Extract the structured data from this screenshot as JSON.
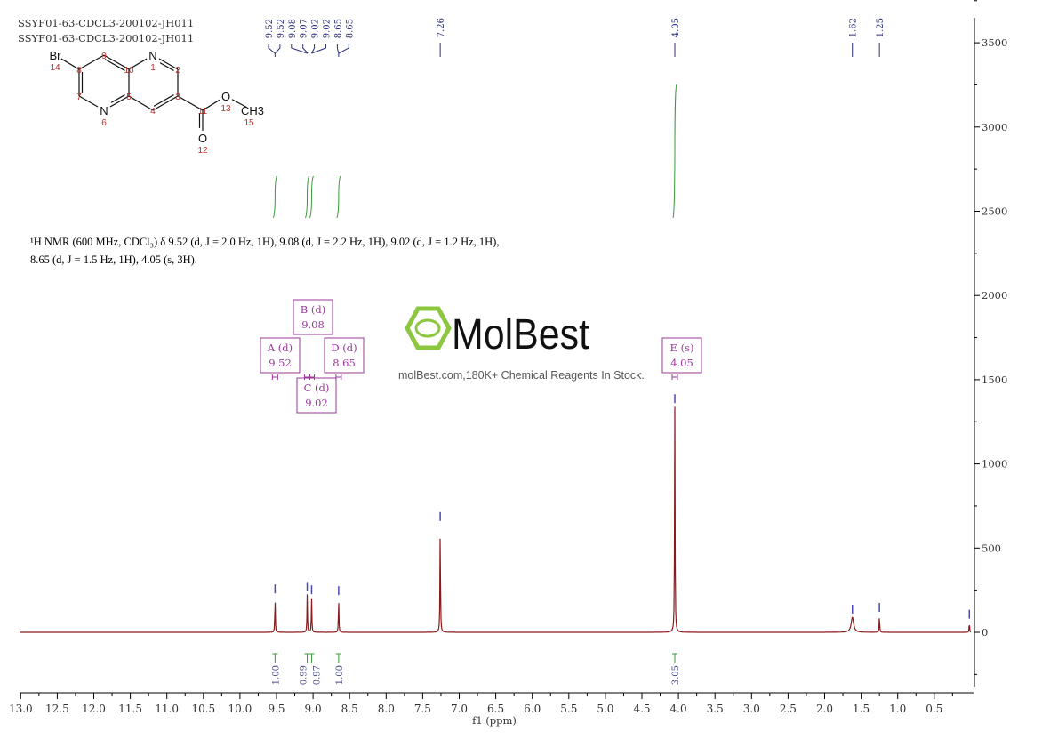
{
  "header": {
    "title_lines": [
      "SSYF01-63-CDCL3-200102-JH011",
      "SSYF01-63-CDCL3-200102-JH011"
    ]
  },
  "description": {
    "line1": "¹H NMR (600 MHz, CDCl₃) δ 9.52 (d, J = 2.0 Hz, 1H), 9.08 (d, J = 2.2 Hz, 1H), 9.02 (d, J = 1.2 Hz, 1H),",
    "line2": "8.65 (d, J = 1.5 Hz, 1H), 4.05 (s, 3H)."
  },
  "watermark": {
    "brand": "MolBest",
    "tagline": "molBest.com,180K+ Chemical Reagents In Stock."
  },
  "structure": {
    "atoms": [
      {
        "label": "Br",
        "num": "14"
      },
      {
        "label": "",
        "num": "8"
      },
      {
        "label": "",
        "num": "9"
      },
      {
        "label": "",
        "num": "10"
      },
      {
        "label": "N",
        "num": "1"
      },
      {
        "label": "",
        "num": "2"
      },
      {
        "label": "",
        "num": "3"
      },
      {
        "label": "",
        "num": "4"
      },
      {
        "label": "",
        "num": "5"
      },
      {
        "label": "N",
        "num": "6"
      },
      {
        "label": "",
        "num": "7"
      },
      {
        "label": "",
        "num": "11"
      },
      {
        "label": "O",
        "num": "12"
      },
      {
        "label": "O",
        "num": "13"
      },
      {
        "label": "CH3",
        "num": "15"
      }
    ]
  },
  "colors": {
    "spectrum": "#8b1a1a",
    "peak_labels": "#2b2f7a",
    "integrals": "#3a9a3a",
    "multiplets": "#9b3a9b",
    "axis": "#000000",
    "watermark_green": "#8dc63f"
  },
  "chart_data": {
    "type": "line",
    "title": "",
    "xlabel": "f1 (ppm)",
    "ylabel": "",
    "xlim": [
      13.0,
      0.0
    ],
    "ylim": [
      -350,
      3650
    ],
    "x_reversed": true,
    "x_ticks": [
      "13.0",
      "12.5",
      "12.0",
      "11.5",
      "11.0",
      "10.5",
      "10.0",
      "9.5",
      "9.0",
      "8.5",
      "8.0",
      "7.5",
      "7.0",
      "6.5",
      "6.0",
      "5.5",
      "5.0",
      "4.5",
      "4.0",
      "3.5",
      "3.0",
      "2.5",
      "2.0",
      "1.5",
      "1.0",
      "0.5"
    ],
    "y_ticks": [
      "0",
      "500",
      "1000",
      "1500",
      "2000",
      "2500",
      "3000",
      "3500"
    ],
    "grid": false,
    "peaks": [
      {
        "ppm": 9.52,
        "intensity": 210
      },
      {
        "ppm": 9.08,
        "intensity": 225
      },
      {
        "ppm": 9.02,
        "intensity": 205
      },
      {
        "ppm": 8.65,
        "intensity": 200
      },
      {
        "ppm": 7.26,
        "intensity": 640
      },
      {
        "ppm": 4.05,
        "intensity": 1340
      },
      {
        "ppm": 1.62,
        "intensity": 90
      },
      {
        "ppm": 1.25,
        "intensity": 100
      },
      {
        "ppm": 0.02,
        "intensity": 60
      }
    ],
    "peak_labels": [
      {
        "group": [
          9.52,
          9.52,
          9.08,
          9.07,
          9.02,
          9.02,
          8.65,
          8.65
        ],
        "text": [
          "9.52",
          "9.52",
          "9.08",
          "9.07",
          "9.02",
          "9.02",
          "8.65",
          "8.65"
        ]
      },
      {
        "group": [
          7.26
        ],
        "text": [
          "7.26"
        ]
      },
      {
        "group": [
          4.05
        ],
        "text": [
          "4.05"
        ]
      },
      {
        "group": [
          1.62
        ],
        "text": [
          "1.62"
        ]
      },
      {
        "group": [
          1.25
        ],
        "text": [
          "1.25"
        ]
      }
    ],
    "integrals": [
      {
        "ppm": 9.52,
        "value": "1.00"
      },
      {
        "ppm": 9.08,
        "value": "0.99"
      },
      {
        "ppm": 9.02,
        "value": "0.97"
      },
      {
        "ppm": 8.65,
        "value": "1.00"
      },
      {
        "ppm": 4.05,
        "value": "3.05"
      }
    ],
    "multiplets": [
      {
        "id": "A",
        "mult": "(d)",
        "shift": "9.52"
      },
      {
        "id": "B",
        "mult": "(d)",
        "shift": "9.08"
      },
      {
        "id": "C",
        "mult": "(d)",
        "shift": "9.02"
      },
      {
        "id": "D",
        "mult": "(d)",
        "shift": "8.65"
      },
      {
        "id": "E",
        "mult": "(s)",
        "shift": "4.05"
      }
    ]
  }
}
